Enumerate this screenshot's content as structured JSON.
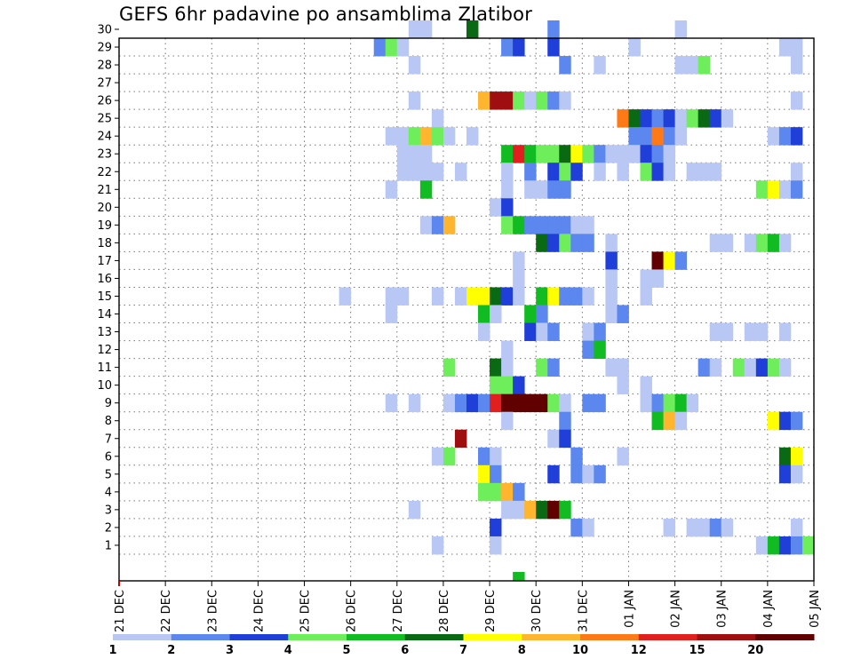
{
  "chart_data": {
    "type": "heatmap",
    "title": "GEFS 6hr padavine po ansamblima Zlatibor",
    "xlabel": "",
    "ylabel": "",
    "x_tick_labels": [
      "21 DEC",
      "22 DEC",
      "23 DEC",
      "24 DEC",
      "25 DEC",
      "26 DEC",
      "27 DEC",
      "28 DEC",
      "29 DEC",
      "30 DEC",
      "31 DEC",
      "01 JAN",
      "02 JAN",
      "03 JAN",
      "04 JAN",
      "05 JAN"
    ],
    "y_tick_labels": [
      "1",
      "2",
      "3",
      "4",
      "5",
      "6",
      "7",
      "8",
      "9",
      "10",
      "11",
      "12",
      "13",
      "14",
      "15",
      "16",
      "17",
      "18",
      "19",
      "20",
      "21",
      "22",
      "23",
      "24",
      "25",
      "26",
      "27",
      "28",
      "29",
      "30"
    ],
    "x_step": "6h",
    "ylim": [
      0,
      30
    ],
    "grid": true,
    "colorbar": {
      "position": "bottom",
      "labels": [
        "1",
        "2",
        "3",
        "4",
        "5",
        "6",
        "7",
        "8",
        "10",
        "12",
        "15",
        "20"
      ],
      "colors": [
        "#b9c7f5",
        "#5b87ee",
        "#1f3fd8",
        "#6fee5b",
        "#11bb22",
        "#0a6a14",
        "#ffff00",
        "#ffb52e",
        "#ff7a16",
        "#e21f1f",
        "#a00f10",
        "#600000"
      ],
      "bins": [
        [
          "1",
          "2"
        ],
        [
          "2",
          "3"
        ],
        [
          "3",
          "4"
        ],
        [
          "4",
          "5"
        ],
        [
          "5",
          "6"
        ],
        [
          "6",
          "7"
        ],
        [
          "7",
          "8"
        ],
        [
          "8",
          "10"
        ],
        [
          "10",
          "12"
        ],
        [
          "12",
          "15"
        ],
        [
          "15",
          "20"
        ],
        [
          "20",
          "+"
        ]
      ]
    },
    "cells": [
      {
        "member": 30,
        "steps": [
          [
            25,
            0
          ],
          [
            26,
            0
          ],
          [
            30,
            5
          ],
          [
            37,
            1
          ],
          [
            48,
            0
          ]
        ]
      },
      {
        "member": 29,
        "steps": [
          [
            22,
            1
          ],
          [
            23,
            3
          ],
          [
            24,
            0
          ],
          [
            33,
            1
          ],
          [
            34,
            2
          ],
          [
            37,
            2
          ],
          [
            44,
            0
          ],
          [
            57,
            0
          ],
          [
            58,
            0
          ]
        ]
      },
      {
        "member": 28,
        "steps": [
          [
            25,
            0
          ],
          [
            38,
            1
          ],
          [
            41,
            0
          ],
          [
            48,
            0
          ],
          [
            49,
            0
          ],
          [
            50,
            3
          ],
          [
            58,
            0
          ]
        ]
      },
      {
        "member": 26,
        "steps": [
          [
            25,
            0
          ],
          [
            31,
            7
          ],
          [
            32,
            10
          ],
          [
            33,
            10
          ],
          [
            34,
            3
          ],
          [
            35,
            0
          ],
          [
            36,
            3
          ],
          [
            37,
            1
          ],
          [
            38,
            0
          ],
          [
            58,
            0
          ]
        ]
      },
      {
        "member": 25,
        "steps": [
          [
            27,
            0
          ],
          [
            43,
            8
          ],
          [
            44,
            5
          ],
          [
            45,
            2
          ],
          [
            46,
            1
          ],
          [
            47,
            2
          ],
          [
            48,
            0
          ],
          [
            49,
            3
          ],
          [
            50,
            5
          ],
          [
            51,
            2
          ],
          [
            52,
            0
          ]
        ]
      },
      {
        "member": 24,
        "steps": [
          [
            23,
            0
          ],
          [
            24,
            0
          ],
          [
            25,
            3
          ],
          [
            26,
            7
          ],
          [
            27,
            3
          ],
          [
            28,
            0
          ],
          [
            30,
            0
          ],
          [
            44,
            1
          ],
          [
            45,
            1
          ],
          [
            46,
            8
          ],
          [
            47,
            1
          ],
          [
            48,
            0
          ],
          [
            56,
            0
          ],
          [
            57,
            1
          ],
          [
            58,
            2
          ]
        ]
      },
      {
        "member": 23,
        "steps": [
          [
            24,
            0
          ],
          [
            25,
            0
          ],
          [
            26,
            0
          ],
          [
            33,
            4
          ],
          [
            34,
            9
          ],
          [
            35,
            4
          ],
          [
            36,
            3
          ],
          [
            37,
            3
          ],
          [
            38,
            5
          ],
          [
            39,
            6
          ],
          [
            40,
            3
          ],
          [
            41,
            1
          ],
          [
            42,
            0
          ],
          [
            43,
            0
          ],
          [
            44,
            0
          ],
          [
            45,
            2
          ],
          [
            46,
            1
          ],
          [
            47,
            0
          ]
        ]
      },
      {
        "member": 22,
        "steps": [
          [
            24,
            0
          ],
          [
            25,
            0
          ],
          [
            26,
            0
          ],
          [
            27,
            0
          ],
          [
            29,
            0
          ],
          [
            33,
            0
          ],
          [
            35,
            1
          ],
          [
            37,
            2
          ],
          [
            38,
            3
          ],
          [
            39,
            2
          ],
          [
            41,
            0
          ],
          [
            43,
            0
          ],
          [
            45,
            3
          ],
          [
            46,
            2
          ],
          [
            47,
            0
          ],
          [
            49,
            0
          ],
          [
            50,
            0
          ],
          [
            51,
            0
          ],
          [
            58,
            0
          ]
        ]
      },
      {
        "member": 21,
        "steps": [
          [
            23,
            0
          ],
          [
            26,
            4
          ],
          [
            33,
            0
          ],
          [
            35,
            0
          ],
          [
            36,
            0
          ],
          [
            37,
            1
          ],
          [
            38,
            1
          ],
          [
            55,
            3
          ],
          [
            56,
            6
          ],
          [
            57,
            0
          ],
          [
            58,
            1
          ]
        ]
      },
      {
        "member": 20,
        "steps": [
          [
            32,
            0
          ],
          [
            33,
            2
          ]
        ]
      },
      {
        "member": 19,
        "steps": [
          [
            26,
            0
          ],
          [
            27,
            1
          ],
          [
            28,
            7
          ],
          [
            33,
            3
          ],
          [
            34,
            4
          ],
          [
            35,
            1
          ],
          [
            36,
            1
          ],
          [
            37,
            1
          ],
          [
            38,
            1
          ],
          [
            39,
            0
          ],
          [
            40,
            0
          ]
        ]
      },
      {
        "member": 18,
        "steps": [
          [
            36,
            5
          ],
          [
            37,
            2
          ],
          [
            38,
            3
          ],
          [
            39,
            1
          ],
          [
            40,
            1
          ],
          [
            42,
            0
          ],
          [
            51,
            0
          ],
          [
            52,
            0
          ],
          [
            54,
            0
          ],
          [
            55,
            3
          ],
          [
            56,
            4
          ],
          [
            57,
            0
          ]
        ]
      },
      {
        "member": 17,
        "steps": [
          [
            34,
            0
          ],
          [
            42,
            2
          ],
          [
            46,
            11
          ],
          [
            47,
            6
          ],
          [
            48,
            1
          ]
        ]
      },
      {
        "member": 16,
        "steps": [
          [
            34,
            0
          ],
          [
            42,
            0
          ],
          [
            45,
            0
          ],
          [
            46,
            0
          ]
        ]
      },
      {
        "member": 15,
        "steps": [
          [
            19,
            0
          ],
          [
            23,
            0
          ],
          [
            24,
            0
          ],
          [
            27,
            0
          ],
          [
            29,
            0
          ],
          [
            30,
            6
          ],
          [
            31,
            6
          ],
          [
            32,
            5
          ],
          [
            33,
            2
          ],
          [
            34,
            0
          ],
          [
            36,
            4
          ],
          [
            37,
            6
          ],
          [
            38,
            1
          ],
          [
            39,
            1
          ],
          [
            40,
            0
          ],
          [
            42,
            0
          ],
          [
            45,
            0
          ]
        ]
      },
      {
        "member": 14,
        "steps": [
          [
            23,
            0
          ],
          [
            31,
            4
          ],
          [
            32,
            0
          ],
          [
            35,
            4
          ],
          [
            36,
            1
          ],
          [
            42,
            0
          ],
          [
            43,
            1
          ]
        ]
      },
      {
        "member": 13,
        "steps": [
          [
            31,
            0
          ],
          [
            35,
            2
          ],
          [
            36,
            0
          ],
          [
            37,
            1
          ],
          [
            40,
            0
          ],
          [
            41,
            1
          ],
          [
            51,
            0
          ],
          [
            52,
            0
          ],
          [
            54,
            0
          ],
          [
            55,
            0
          ],
          [
            57,
            0
          ]
        ]
      },
      {
        "member": 12,
        "steps": [
          [
            33,
            0
          ],
          [
            40,
            1
          ],
          [
            41,
            4
          ]
        ]
      },
      {
        "member": 11,
        "steps": [
          [
            28,
            3
          ],
          [
            32,
            5
          ],
          [
            33,
            0
          ],
          [
            36,
            3
          ],
          [
            37,
            1
          ],
          [
            42,
            0
          ],
          [
            43,
            0
          ],
          [
            50,
            1
          ],
          [
            51,
            0
          ],
          [
            53,
            3
          ],
          [
            54,
            0
          ],
          [
            55,
            2
          ],
          [
            56,
            3
          ],
          [
            57,
            0
          ]
        ]
      },
      {
        "member": 10,
        "steps": [
          [
            32,
            3
          ],
          [
            33,
            3
          ],
          [
            34,
            2
          ],
          [
            43,
            0
          ],
          [
            45,
            0
          ]
        ]
      },
      {
        "member": 9,
        "steps": [
          [
            23,
            0
          ],
          [
            25,
            0
          ],
          [
            28,
            0
          ],
          [
            29,
            1
          ],
          [
            30,
            2
          ],
          [
            31,
            1
          ],
          [
            32,
            9
          ],
          [
            33,
            11
          ],
          [
            34,
            11
          ],
          [
            35,
            11
          ],
          [
            36,
            11
          ],
          [
            37,
            3
          ],
          [
            38,
            0
          ],
          [
            40,
            1
          ],
          [
            41,
            1
          ],
          [
            45,
            0
          ],
          [
            46,
            1
          ],
          [
            47,
            3
          ],
          [
            48,
            4
          ],
          [
            49,
            0
          ]
        ]
      },
      {
        "member": 8,
        "steps": [
          [
            33,
            0
          ],
          [
            38,
            1
          ],
          [
            46,
            4
          ],
          [
            47,
            7
          ],
          [
            48,
            0
          ],
          [
            56,
            6
          ],
          [
            57,
            2
          ],
          [
            58,
            1
          ]
        ]
      },
      {
        "member": 7,
        "steps": [
          [
            29,
            10
          ],
          [
            37,
            0
          ],
          [
            38,
            2
          ]
        ]
      },
      {
        "member": 6,
        "steps": [
          [
            27,
            0
          ],
          [
            28,
            3
          ],
          [
            31,
            1
          ],
          [
            32,
            0
          ],
          [
            39,
            1
          ],
          [
            43,
            0
          ],
          [
            57,
            5
          ],
          [
            58,
            6
          ]
        ]
      },
      {
        "member": 5,
        "steps": [
          [
            31,
            6
          ],
          [
            32,
            1
          ],
          [
            37,
            2
          ],
          [
            39,
            1
          ],
          [
            40,
            0
          ],
          [
            41,
            1
          ],
          [
            57,
            2
          ],
          [
            58,
            0
          ]
        ]
      },
      {
        "member": 4,
        "steps": [
          [
            31,
            3
          ],
          [
            32,
            3
          ],
          [
            33,
            7
          ],
          [
            34,
            1
          ]
        ]
      },
      {
        "member": 3,
        "steps": [
          [
            25,
            0
          ],
          [
            33,
            0
          ],
          [
            34,
            0
          ],
          [
            35,
            7
          ],
          [
            36,
            5
          ],
          [
            37,
            11
          ],
          [
            38,
            4
          ]
        ]
      },
      {
        "member": 2,
        "steps": [
          [
            32,
            2
          ],
          [
            39,
            1
          ],
          [
            40,
            0
          ],
          [
            47,
            0
          ],
          [
            49,
            0
          ],
          [
            50,
            0
          ],
          [
            51,
            1
          ],
          [
            52,
            0
          ],
          [
            58,
            0
          ]
        ]
      },
      {
        "member": 1,
        "steps": [
          [
            27,
            0
          ],
          [
            32,
            0
          ],
          [
            55,
            0
          ],
          [
            56,
            4
          ],
          [
            57,
            2
          ],
          [
            58,
            1
          ],
          [
            59,
            3
          ]
        ]
      },
      {
        "member": 0,
        "steps": [
          [
            34,
            4
          ]
        ]
      }
    ]
  }
}
